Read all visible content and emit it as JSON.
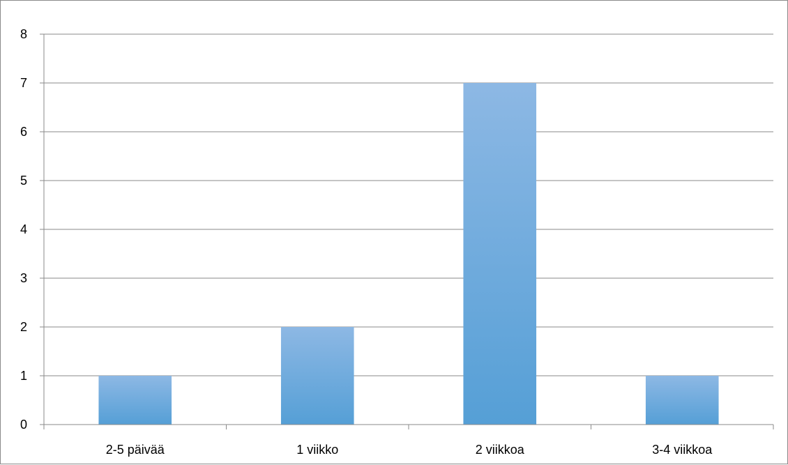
{
  "chart_data": {
    "type": "bar",
    "categories": [
      "2-5 päivää",
      "1 viikko",
      "2 viikkoa",
      "3-4 viikkoa"
    ],
    "values": [
      1,
      2,
      7,
      1
    ],
    "y_ticks": [
      "0",
      "1",
      "2",
      "3",
      "4",
      "5",
      "6",
      "7",
      "8"
    ],
    "ylim": [
      0,
      8
    ],
    "grid": true,
    "legend": "none",
    "title": "",
    "xlabel": "",
    "ylabel": "",
    "colors": {
      "bar_top": "#8db8e4",
      "bar_bottom": "#559fd6",
      "gridline": "#8a8a8a",
      "axis": "#8a8a8a",
      "text": "#000000"
    }
  }
}
